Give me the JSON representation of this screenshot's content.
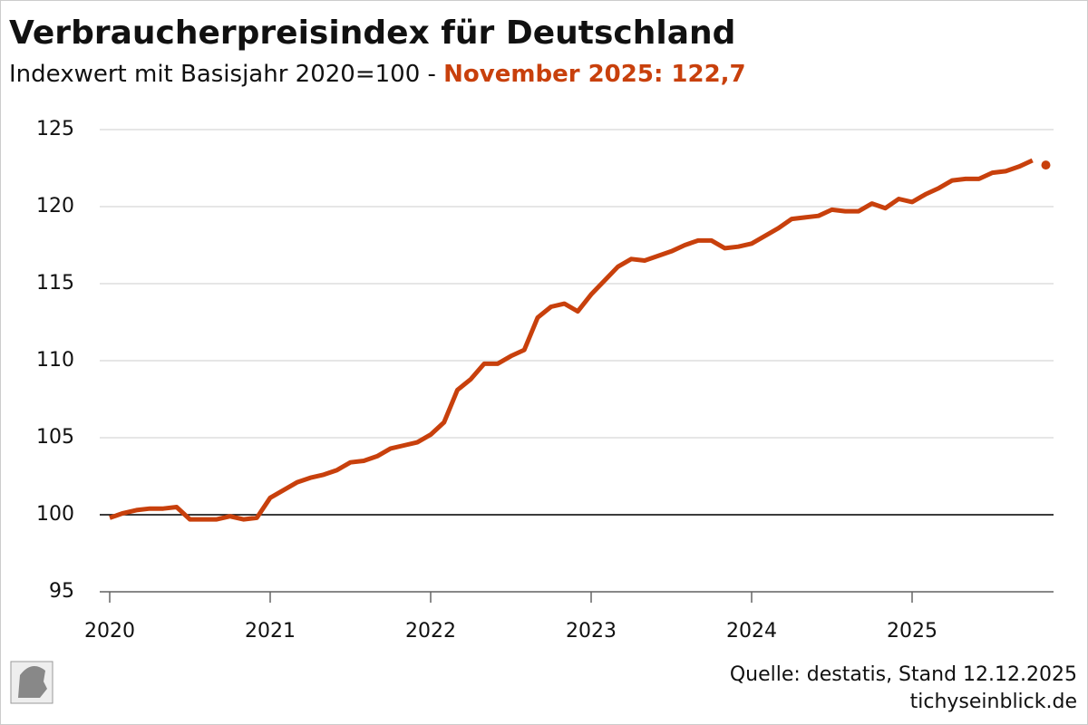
{
  "chart_data": {
    "type": "line",
    "title": "Verbraucherpreisindex für Deutschland",
    "subtitle": "Indexwert mit Basisjahr 2020=100 -",
    "subtitle_highlight": "November 2025: 122,7",
    "source": "Quelle: destatis, Stand 12.12.2025",
    "site": "tichyseinblick.de",
    "categories": [
      "2020",
      null,
      null,
      null,
      null,
      null,
      null,
      null,
      null,
      null,
      null,
      null,
      "2021",
      null,
      null,
      null,
      null,
      null,
      null,
      null,
      null,
      null,
      null,
      null,
      "2022",
      null,
      null,
      null,
      null,
      null,
      null,
      null,
      null,
      null,
      null,
      null,
      "2023",
      null,
      null,
      null,
      null,
      null,
      null,
      null,
      null,
      null,
      null,
      null,
      "2024",
      null,
      null,
      null,
      null,
      null,
      null,
      null,
      null,
      null,
      null,
      null,
      "2025",
      null,
      null,
      null,
      null,
      null,
      null,
      null,
      null,
      null,
      null
    ],
    "series": [
      {
        "color": "#c8400c",
        "style": "line",
        "values": [
          99.8,
          100.1,
          100.3,
          100.4,
          100.4,
          100.5,
          99.7,
          99.7,
          99.7,
          99.9,
          99.7,
          99.8,
          101.1,
          101.6,
          102.1,
          102.4,
          102.6,
          102.9,
          103.4,
          103.5,
          103.8,
          104.3,
          104.5,
          104.7,
          105.2,
          106.0,
          108.1,
          108.8,
          109.8,
          109.8,
          110.3,
          110.7,
          112.8,
          113.5,
          113.7,
          113.2,
          114.3,
          115.2,
          116.1,
          116.6,
          116.5,
          116.8,
          117.1,
          117.5,
          117.8,
          117.8,
          117.3,
          117.4,
          117.6,
          118.1,
          118.6,
          119.2,
          119.3,
          119.4,
          119.8,
          119.7,
          119.7,
          120.2,
          119.9,
          120.5,
          120.3,
          120.8,
          121.2,
          121.7,
          121.8,
          121.8,
          122.2,
          122.3,
          122.6,
          123.0,
          null
        ]
      },
      {
        "color": "#c8400c",
        "style": "dot",
        "values": [
          null,
          null,
          null,
          null,
          null,
          null,
          null,
          null,
          null,
          null,
          null,
          null,
          null,
          null,
          null,
          null,
          null,
          null,
          null,
          null,
          null,
          null,
          null,
          null,
          null,
          null,
          null,
          null,
          null,
          null,
          null,
          null,
          null,
          null,
          null,
          null,
          null,
          null,
          null,
          null,
          null,
          null,
          null,
          null,
          null,
          null,
          null,
          null,
          null,
          null,
          null,
          null,
          null,
          null,
          null,
          null,
          null,
          null,
          null,
          null,
          null,
          null,
          null,
          null,
          null,
          null,
          null,
          null,
          null,
          null,
          122.7
        ]
      }
    ],
    "ylim": [
      95,
      125
    ],
    "yticks": [
      95,
      100,
      105,
      110,
      115,
      120,
      125
    ],
    "baseline": 100,
    "grid": true
  }
}
